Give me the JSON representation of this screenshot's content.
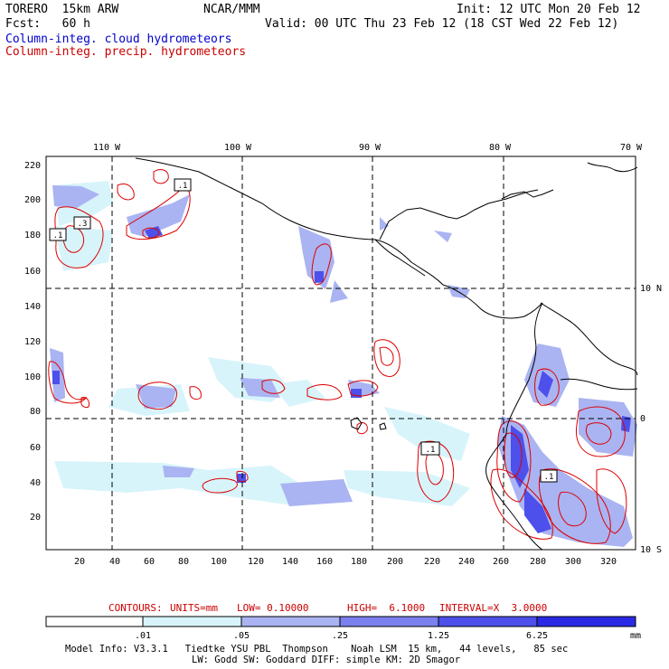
{
  "header": {
    "model": "TORERO  15km ARW",
    "org": "NCAR/MMM",
    "init": "Init: 12 UTC Mon 20 Feb 12",
    "fcst": "Fcst:   60 h",
    "valid": "Valid: 00 UTC Thu 23 Feb 12 (18 CST Wed 22 Feb 12)",
    "field_cloud": "Column-integ. cloud hydrometeors",
    "field_precip": "Column-integ. precip. hydrometeors"
  },
  "map": {
    "top_lon_labels": [
      "110 W",
      "100 W",
      "90 W",
      "80 W",
      "70 W"
    ],
    "right_lat_labels": [
      "10 N",
      "0",
      "10 S"
    ],
    "x_ticks": [
      "20",
      "40",
      "60",
      "80",
      "100",
      "120",
      "140",
      "160",
      "180",
      "200",
      "220",
      "240",
      "260",
      "280",
      "300",
      "320"
    ],
    "y_ticks": [
      "20",
      "40",
      "60",
      "80",
      "100",
      "120",
      "140",
      "160",
      "180",
      "200",
      "220"
    ],
    "contour_labels": [
      ".1",
      ".1",
      ".3",
      ".1",
      ".1"
    ],
    "colors": {
      "cloud_fill": "#9fa8f0",
      "precip_contour": "#dd0000",
      "coast": "#000000",
      "grid": "#000000"
    }
  },
  "contour_info": {
    "prefix": "CONTOURS:",
    "units": "UNITS=mm",
    "low": "LOW= 0.10000",
    "high": "HIGH=  6.1000",
    "interval": "INTERVAL=X  3.0000"
  },
  "colorbar": {
    "labels": [
      ".01",
      ".05",
      ".25",
      "1.25",
      "6.25"
    ],
    "unit": "mm",
    "colors": [
      "#ffffff",
      "#d8f4fb",
      "#aab4f2",
      "#7b80ee",
      "#4d50ea",
      "#2a2ae6"
    ]
  },
  "footer": {
    "line1": "Model Info: V3.3.1   Tiedtke YSU PBL  Thompson    Noah LSM  15 km,   44 levels,   85 sec",
    "line2": "LW: Godd SW: Goddard DIFF: simple KM: 2D Smagor"
  }
}
